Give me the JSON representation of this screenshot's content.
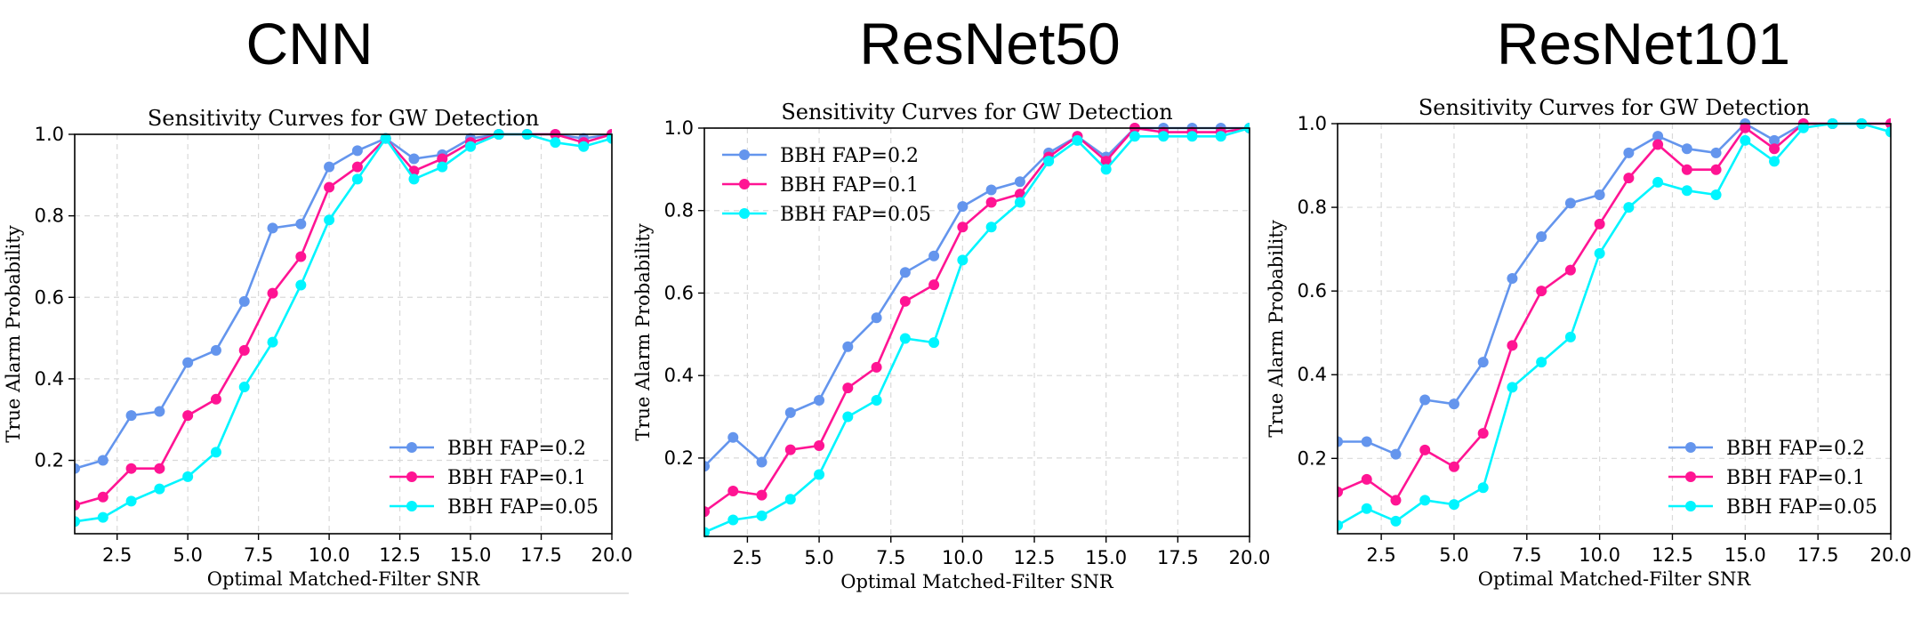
{
  "colors": {
    "fap_0_2": "#6495ED",
    "fap_0_1": "#FF1493",
    "fap_0_05": "#00F5FF"
  },
  "chart_data": [
    {
      "type": "line",
      "model_heading": "CNN",
      "title": "Sensitivity Curves for GW Detection",
      "xlabel": "Optimal Matched-Filter SNR",
      "ylabel": "True Alarm Probability",
      "xlim": [
        1,
        20
      ],
      "ylim": [
        0.0,
        1.0
      ],
      "xticks": [
        2.5,
        5.0,
        7.5,
        10.0,
        12.5,
        15.0,
        17.5,
        20.0
      ],
      "xtick_labels": [
        "2.5",
        "5.0",
        "7.5",
        "10.0",
        "12.5",
        "15.0",
        "17.5",
        "20.0"
      ],
      "yticks": [
        0.2,
        0.4,
        0.6,
        0.8,
        1.0
      ],
      "ytick_labels": [
        "0.2",
        "0.4",
        "0.6",
        "0.8",
        "1.0"
      ],
      "grid": true,
      "legend_position": "lower-right",
      "x": [
        1,
        2,
        3,
        4,
        5,
        6,
        7,
        8,
        9,
        10,
        11,
        12,
        13,
        14,
        15,
        16,
        17,
        18,
        19,
        20
      ],
      "series": [
        {
          "name": "BBH FAP=0.2",
          "color_key": "fap_0_2",
          "values": [
            0.18,
            0.2,
            0.31,
            0.32,
            0.44,
            0.47,
            0.59,
            0.77,
            0.78,
            0.92,
            0.96,
            0.99,
            0.94,
            0.95,
            0.99,
            1.0,
            1.0,
            1.0,
            0.99,
            1.0
          ]
        },
        {
          "name": "BBH FAP=0.1",
          "color_key": "fap_0_1",
          "values": [
            0.09,
            0.11,
            0.18,
            0.18,
            0.31,
            0.35,
            0.47,
            0.61,
            0.7,
            0.87,
            0.92,
            0.99,
            0.91,
            0.94,
            0.98,
            1.0,
            1.0,
            1.0,
            0.98,
            1.0
          ]
        },
        {
          "name": "BBH FAP=0.05",
          "color_key": "fap_0_05",
          "values": [
            0.05,
            0.06,
            0.1,
            0.13,
            0.16,
            0.22,
            0.38,
            0.49,
            0.63,
            0.79,
            0.89,
            0.99,
            0.89,
            0.92,
            0.97,
            1.0,
            1.0,
            0.98,
            0.97,
            0.99
          ]
        }
      ]
    },
    {
      "type": "line",
      "model_heading": "ResNet50",
      "title": "Sensitivity Curves for GW Detection",
      "xlabel": "Optimal Matched-Filter SNR",
      "ylabel": "True Alarm Probability",
      "xlim": [
        1,
        20
      ],
      "ylim": [
        0.0,
        1.0
      ],
      "xticks": [
        2.5,
        5.0,
        7.5,
        10.0,
        12.5,
        15.0,
        17.5,
        20.0
      ],
      "xtick_labels": [
        "2.5",
        "5.0",
        "7.5",
        "10.0",
        "12.5",
        "15.0",
        "17.5",
        "20.0"
      ],
      "yticks": [
        0.2,
        0.4,
        0.6,
        0.8,
        1.0
      ],
      "ytick_labels": [
        "0.2",
        "0.4",
        "0.6",
        "0.8",
        "1.0"
      ],
      "grid": true,
      "legend_position": "upper-left",
      "x": [
        1,
        2,
        3,
        4,
        5,
        6,
        7,
        8,
        9,
        10,
        11,
        12,
        13,
        14,
        15,
        16,
        17,
        18,
        19,
        20
      ],
      "series": [
        {
          "name": "BBH FAP=0.2",
          "color_key": "fap_0_2",
          "values": [
            0.18,
            0.25,
            0.19,
            0.31,
            0.34,
            0.47,
            0.54,
            0.65,
            0.69,
            0.81,
            0.85,
            0.87,
            0.94,
            0.98,
            0.93,
            1.0,
            1.0,
            1.0,
            1.0,
            1.0
          ]
        },
        {
          "name": "BBH FAP=0.1",
          "color_key": "fap_0_1",
          "values": [
            0.07,
            0.12,
            0.11,
            0.22,
            0.23,
            0.37,
            0.42,
            0.58,
            0.62,
            0.76,
            0.82,
            0.84,
            0.93,
            0.98,
            0.92,
            1.0,
            0.99,
            0.99,
            0.99,
            1.0
          ]
        },
        {
          "name": "BBH FAP=0.05",
          "color_key": "fap_0_05",
          "values": [
            0.02,
            0.05,
            0.06,
            0.1,
            0.16,
            0.3,
            0.34,
            0.49,
            0.48,
            0.68,
            0.76,
            0.82,
            0.92,
            0.97,
            0.9,
            0.98,
            0.98,
            0.98,
            0.98,
            1.0
          ]
        }
      ]
    },
    {
      "type": "line",
      "model_heading": "ResNet101",
      "title": "Sensitivity Curves for GW Detection",
      "xlabel": "Optimal Matched-Filter SNR",
      "ylabel": "True Alarm Probability",
      "xlim": [
        1,
        20
      ],
      "ylim": [
        0.0,
        1.0
      ],
      "xticks": [
        2.5,
        5.0,
        7.5,
        10.0,
        12.5,
        15.0,
        17.5,
        20.0
      ],
      "xtick_labels": [
        "2.5",
        "5.0",
        "7.5",
        "10.0",
        "12.5",
        "15.0",
        "17.5",
        "20.0"
      ],
      "yticks": [
        0.2,
        0.4,
        0.6,
        0.8,
        1.0
      ],
      "ytick_labels": [
        "0.2",
        "0.4",
        "0.6",
        "0.8",
        "1.0"
      ],
      "grid": true,
      "legend_position": "lower-right",
      "x": [
        1,
        2,
        3,
        4,
        5,
        6,
        7,
        8,
        9,
        10,
        11,
        12,
        13,
        14,
        15,
        16,
        17,
        18,
        19,
        20
      ],
      "series": [
        {
          "name": "BBH FAP=0.2",
          "color_key": "fap_0_2",
          "values": [
            0.24,
            0.24,
            0.21,
            0.34,
            0.33,
            0.43,
            0.63,
            0.73,
            0.81,
            0.83,
            0.93,
            0.97,
            0.94,
            0.93,
            1.0,
            0.96,
            1.0,
            1.0,
            1.0,
            1.0
          ]
        },
        {
          "name": "BBH FAP=0.1",
          "color_key": "fap_0_1",
          "values": [
            0.12,
            0.15,
            0.1,
            0.22,
            0.18,
            0.26,
            0.47,
            0.6,
            0.65,
            0.76,
            0.87,
            0.95,
            0.89,
            0.89,
            0.99,
            0.94,
            1.0,
            1.0,
            1.0,
            1.0
          ]
        },
        {
          "name": "BBH FAP=0.05",
          "color_key": "fap_0_05",
          "values": [
            0.04,
            0.08,
            0.05,
            0.1,
            0.09,
            0.13,
            0.37,
            0.43,
            0.49,
            0.69,
            0.8,
            0.86,
            0.84,
            0.83,
            0.96,
            0.91,
            0.99,
            1.0,
            1.0,
            0.98
          ]
        }
      ]
    }
  ]
}
